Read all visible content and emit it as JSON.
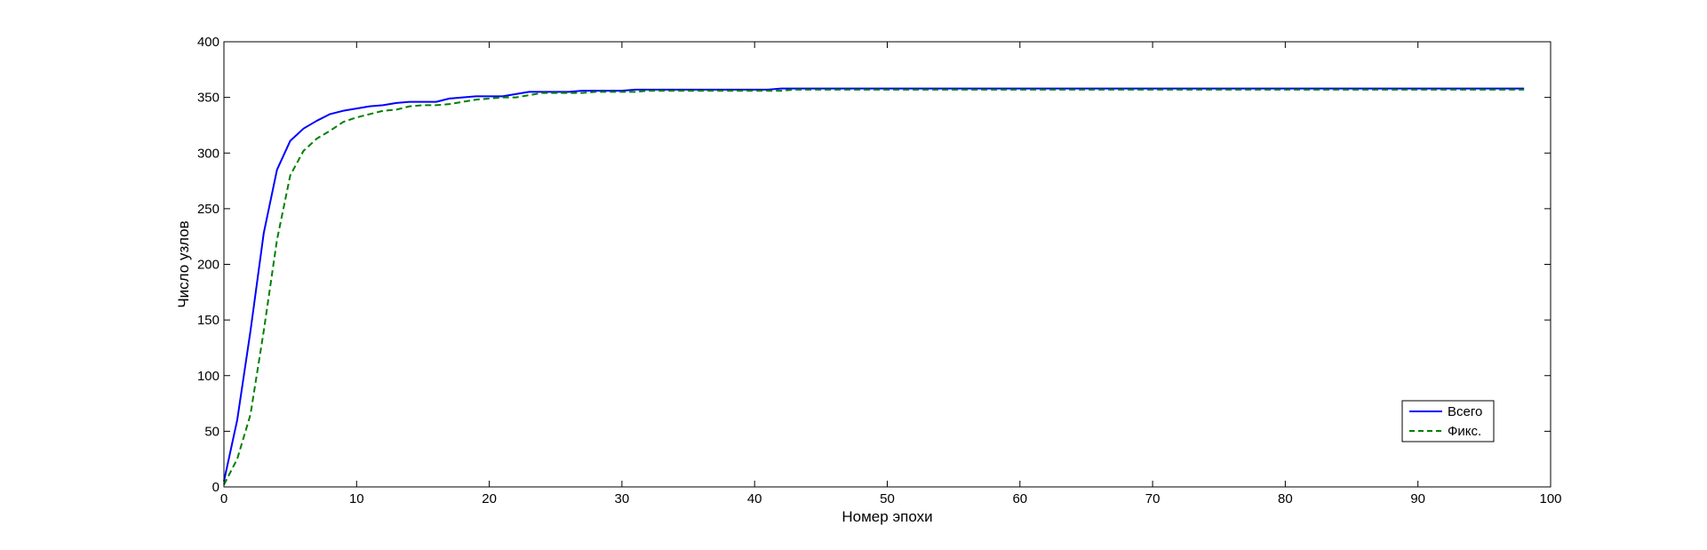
{
  "chart_data": {
    "type": "line",
    "title": "",
    "xlabel": "Номер эпохи",
    "ylabel": "Число узлов",
    "xlim": [
      0,
      100
    ],
    "ylim": [
      0,
      400
    ],
    "xticks": [
      0,
      10,
      20,
      30,
      40,
      50,
      60,
      70,
      80,
      90,
      100
    ],
    "yticks": [
      0,
      50,
      100,
      150,
      200,
      250,
      300,
      350,
      400
    ],
    "grid": false,
    "legend_position": "bottom-right",
    "x": [
      0,
      1,
      2,
      3,
      4,
      5,
      6,
      7,
      8,
      9,
      10,
      11,
      12,
      13,
      14,
      15,
      16,
      17,
      18,
      19,
      20,
      21,
      22,
      23,
      24,
      25,
      26,
      27,
      28,
      29,
      30,
      31,
      32,
      33,
      34,
      35,
      36,
      37,
      38,
      39,
      40,
      41,
      42,
      43,
      44,
      45,
      46,
      47,
      48,
      49,
      50,
      51,
      52,
      53,
      54,
      55,
      56,
      57,
      58,
      59,
      60,
      61,
      62,
      63,
      64,
      65,
      66,
      67,
      68,
      69,
      70,
      71,
      72,
      73,
      74,
      75,
      76,
      77,
      78,
      79,
      80,
      81,
      82,
      83,
      84,
      85,
      86,
      87,
      88,
      89,
      90,
      91,
      92,
      93,
      94,
      95,
      96,
      97,
      98
    ],
    "series": [
      {
        "name": "Всего",
        "color": "#0000ff",
        "line_style": "solid",
        "values": [
          5,
          60,
          140,
          228,
          285,
          311,
          322,
          329,
          335,
          338,
          340,
          342,
          343,
          345,
          346,
          346,
          346,
          349,
          350,
          351,
          351,
          351,
          353,
          355,
          355,
          355,
          355,
          356,
          356,
          356,
          356,
          357,
          357,
          357,
          357,
          357,
          357,
          357,
          357,
          357,
          357,
          357,
          358,
          358,
          358,
          358,
          358,
          358,
          358,
          358,
          358,
          358,
          358,
          358,
          358,
          358,
          358,
          358,
          358,
          358,
          358,
          358,
          358,
          358,
          358,
          358,
          358,
          358,
          358,
          358,
          358,
          358,
          358,
          358,
          358,
          358,
          358,
          358,
          358,
          358,
          358,
          358,
          358,
          358,
          358,
          358,
          358,
          358,
          358,
          358,
          358,
          358,
          358,
          358,
          358,
          358,
          358,
          358,
          358
        ]
      },
      {
        "name": "Фикс.",
        "color": "#008000",
        "line_style": "dashed",
        "values": [
          2,
          25,
          65,
          140,
          222,
          280,
          302,
          313,
          320,
          328,
          332,
          335,
          338,
          339,
          342,
          343,
          343,
          344,
          346,
          348,
          349,
          350,
          350,
          352,
          354,
          354,
          354,
          354,
          355,
          355,
          355,
          355,
          356,
          356,
          356,
          356,
          356,
          356,
          356,
          356,
          356,
          356,
          356,
          357,
          357,
          357,
          357,
          357,
          357,
          357,
          357,
          357,
          357,
          357,
          357,
          357,
          357,
          357,
          357,
          357,
          357,
          357,
          357,
          357,
          357,
          357,
          357,
          357,
          357,
          357,
          357,
          357,
          357,
          357,
          357,
          357,
          357,
          357,
          357,
          357,
          357,
          357,
          357,
          357,
          357,
          357,
          357,
          357,
          357,
          357,
          357,
          357,
          357,
          357,
          357,
          357,
          357,
          357,
          357
        ]
      }
    ]
  }
}
